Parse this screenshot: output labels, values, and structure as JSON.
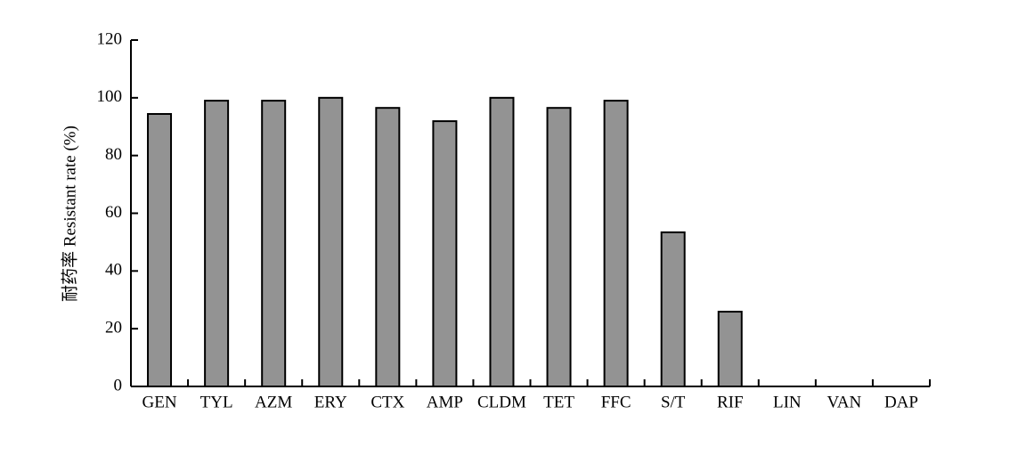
{
  "chart_data": {
    "type": "bar",
    "y_label": "耐药率 Resistant rate (%)",
    "categories": [
      "GEN",
      "TYL",
      "AZM",
      "ERY",
      "CTX",
      "AMP",
      "CLDM",
      "TET",
      "FFC",
      "S/T",
      "RIF",
      "LIN",
      "VAN",
      "DAP"
    ],
    "values": [
      94.4,
      99,
      99,
      100,
      96.5,
      91.9,
      100,
      96.5,
      99,
      53.4,
      25.9,
      0,
      0,
      0
    ],
    "color": "#939393",
    "ylim": [
      0,
      120
    ],
    "yticks": [
      0,
      20,
      40,
      60,
      80,
      100,
      120
    ],
    "grid": false
  }
}
